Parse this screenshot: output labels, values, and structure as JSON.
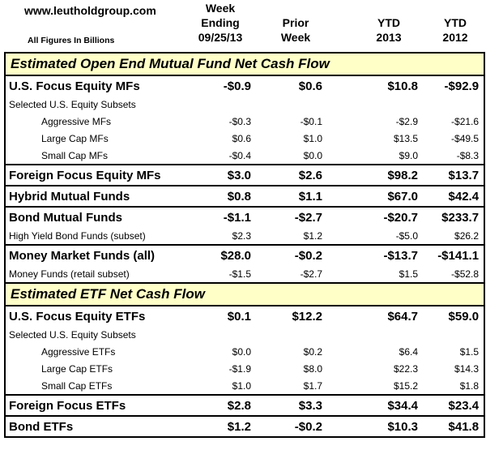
{
  "header": {
    "site": "www.leutholdgroup.com",
    "note": "All Figures In Billions",
    "columns": [
      [
        "Week",
        "Ending",
        "09/25/13"
      ],
      [
        "Prior",
        "Week"
      ],
      [
        "YTD",
        "2013"
      ],
      [
        "YTD",
        "2012"
      ]
    ]
  },
  "sections": [
    {
      "title": "Estimated Open End Mutual Fund Net Cash Flow",
      "rows": [
        {
          "style": "main",
          "label": "U.S. Focus Equity MFs",
          "values": [
            "-$0.9",
            "$0.6",
            "$10.8",
            "-$92.9"
          ]
        },
        {
          "style": "sub",
          "label": "Selected U.S. Equity Subsets",
          "values": [
            "",
            "",
            "",
            ""
          ]
        },
        {
          "style": "sub2",
          "label": "Aggressive MFs",
          "values": [
            "-$0.3",
            "-$0.1",
            "-$2.9",
            "-$21.6"
          ]
        },
        {
          "style": "sub2",
          "label": "Large Cap MFs",
          "values": [
            "$0.6",
            "$1.0",
            "$13.5",
            "-$49.5"
          ]
        },
        {
          "style": "sub2",
          "label": "Small Cap MFs",
          "values": [
            "-$0.4",
            "$0.0",
            "$9.0",
            "-$8.3"
          ]
        },
        {
          "style": "main",
          "label": "Foreign Focus Equity MFs",
          "values": [
            "$3.0",
            "$2.6",
            "$98.2",
            "$13.7"
          ]
        },
        {
          "style": "main",
          "label": "Hybrid Mutual Funds",
          "values": [
            "$0.8",
            "$1.1",
            "$67.0",
            "$42.4"
          ]
        },
        {
          "style": "main",
          "label": "Bond Mutual Funds",
          "values": [
            "-$1.1",
            "-$2.7",
            "-$20.7",
            "$233.7"
          ]
        },
        {
          "style": "sub",
          "label": "High Yield Bond Funds (subset)",
          "values": [
            "$2.3",
            "$1.2",
            "-$5.0",
            "$26.2"
          ]
        },
        {
          "style": "main",
          "label": "Money Market Funds (all)",
          "values": [
            "$28.0",
            "-$0.2",
            "-$13.7",
            "-$141.1"
          ]
        },
        {
          "style": "sub",
          "label": "Money Funds (retail subset)",
          "values": [
            "-$1.5",
            "-$2.7",
            "$1.5",
            "-$52.8"
          ]
        }
      ]
    },
    {
      "title": "Estimated ETF Net Cash Flow",
      "rows": [
        {
          "style": "main",
          "label": "U.S. Focus Equity ETFs",
          "values": [
            "$0.1",
            "$12.2",
            "$64.7",
            "$59.0"
          ]
        },
        {
          "style": "sub",
          "label": "Selected U.S. Equity Subsets",
          "values": [
            "",
            "",
            "",
            ""
          ]
        },
        {
          "style": "sub2",
          "label": "Aggressive ETFs",
          "values": [
            "$0.0",
            "$0.2",
            "$6.4",
            "$1.5"
          ]
        },
        {
          "style": "sub2",
          "label": "Large Cap ETFs",
          "values": [
            "-$1.9",
            "$8.0",
            "$22.3",
            "$14.3"
          ]
        },
        {
          "style": "sub2",
          "label": "Small Cap ETFs",
          "values": [
            "$1.0",
            "$1.7",
            "$15.2",
            "$1.8"
          ]
        },
        {
          "style": "main",
          "label": "Foreign Focus ETFs",
          "values": [
            "$2.8",
            "$3.3",
            "$34.4",
            "$23.4"
          ]
        },
        {
          "style": "main",
          "label": "Bond ETFs",
          "values": [
            "$1.2",
            "-$0.2",
            "$10.3",
            "$41.8"
          ]
        }
      ]
    }
  ]
}
